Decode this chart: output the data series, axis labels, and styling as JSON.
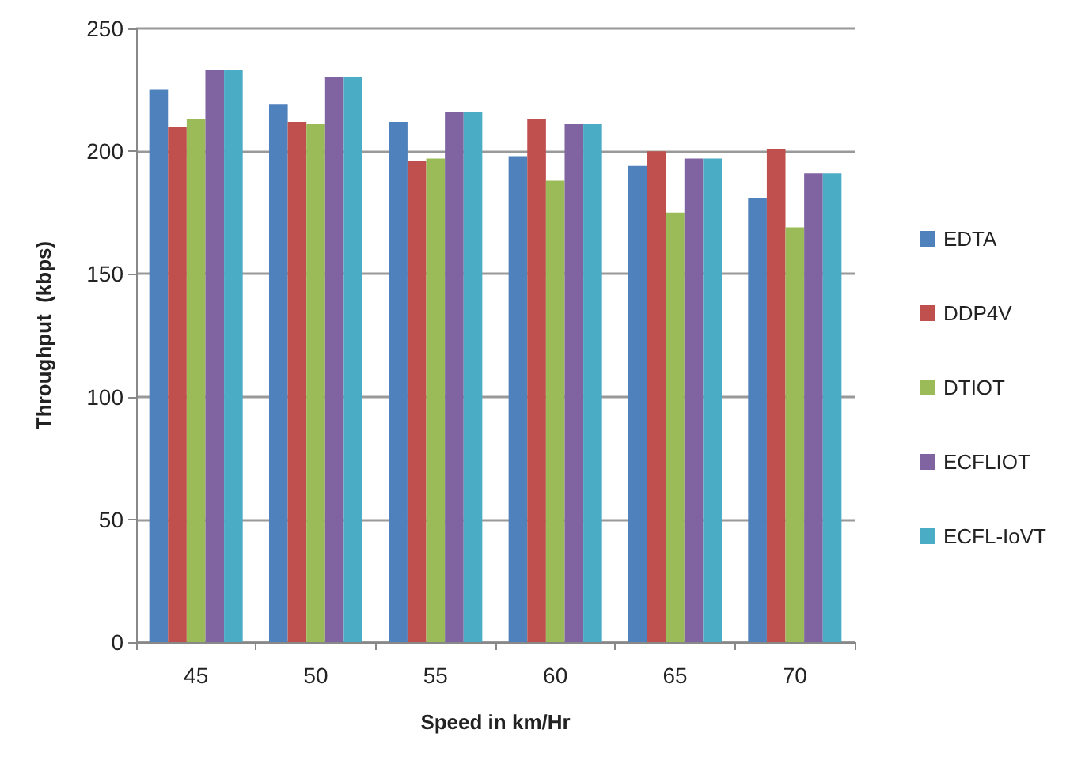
{
  "chart_data": {
    "type": "bar",
    "xlabel": "Speed in km/Hr",
    "ylabel": "Throughput  (kbps)",
    "categories": [
      "45",
      "50",
      "55",
      "60",
      "65",
      "70"
    ],
    "series": [
      {
        "name": "EDTA",
        "color": "#4f81bd",
        "values": [
          225,
          219,
          212,
          198,
          194,
          181
        ]
      },
      {
        "name": "DDP4V",
        "color": "#c0504d",
        "values": [
          210,
          212,
          196,
          213,
          200,
          201
        ]
      },
      {
        "name": "DTIOT",
        "color": "#9bbb59",
        "values": [
          213,
          211,
          197,
          188,
          175,
          169
        ]
      },
      {
        "name": "ECFLIOT",
        "color": "#8064a2",
        "values": [
          233,
          230,
          216,
          211,
          197,
          191
        ]
      },
      {
        "name": "ECFL-IoVT",
        "color": "#4bacc6",
        "values": [
          233,
          230,
          216,
          211,
          197,
          191
        ]
      }
    ],
    "ylim": [
      0,
      250
    ],
    "yticks": [
      0,
      50,
      100,
      150,
      200,
      250
    ],
    "grid": "y",
    "legend": "right"
  }
}
